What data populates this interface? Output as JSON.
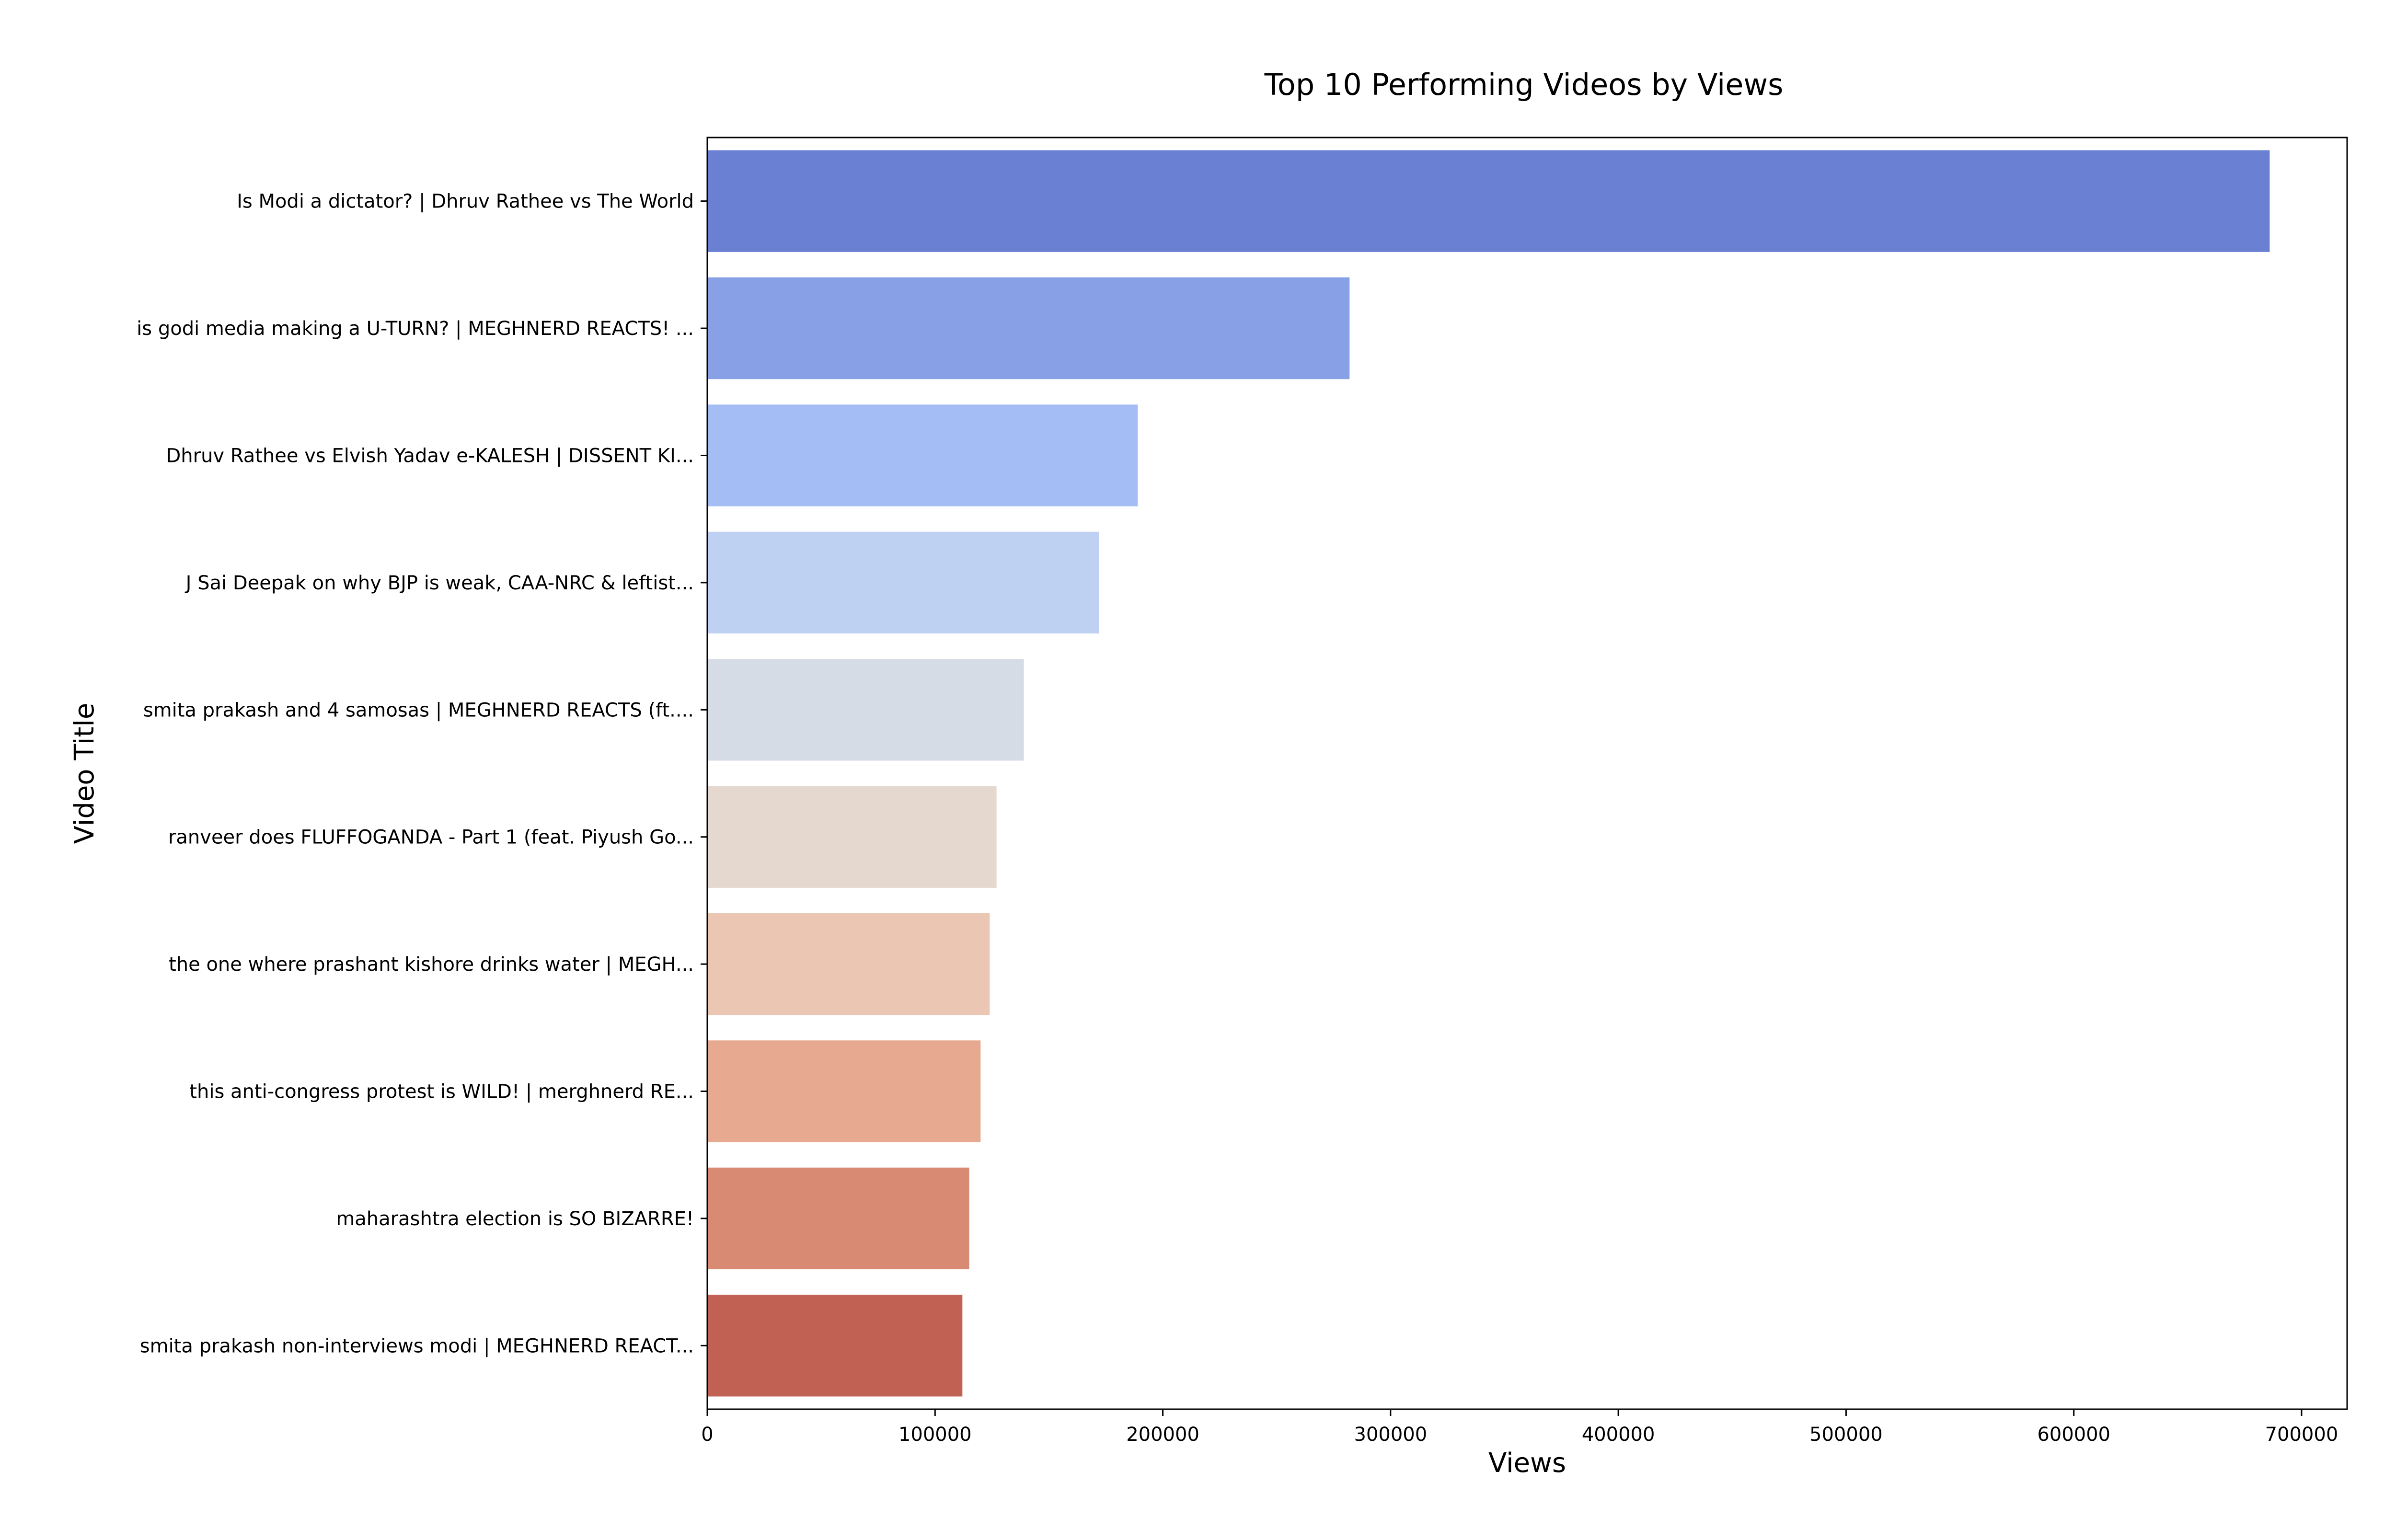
{
  "chart_data": {
    "type": "bar",
    "orientation": "horizontal",
    "title": "Top 10 Performing Videos by Views",
    "xlabel": "Views",
    "ylabel": "Video Title",
    "xlim": [
      0,
      720000
    ],
    "xticks": [
      0,
      100000,
      200000,
      300000,
      400000,
      500000,
      600000,
      700000
    ],
    "xtick_labels": [
      "0",
      "100000",
      "200000",
      "300000",
      "400000",
      "500000",
      "600000",
      "700000"
    ],
    "grid": false,
    "legend": "none",
    "categories": [
      "Is Modi a dictator? | Dhruv Rathee vs The World",
      "is godi media making a U-TURN? | MEGHNERD REACTS! ...",
      "Dhruv Rathee vs Elvish Yadav e-KALESH | DISSENT KI...",
      "J Sai Deepak on why BJP is weak, CAA-NRC & leftist...",
      "smita prakash and 4 samosas | MEGHNERD REACTS (ft....",
      "ranveer does FLUFFOGANDA - Part 1 (feat. Piyush Go...",
      "the one where prashant kishore drinks water | MEGH...",
      "this anti-congress protest is WILD! | merghnerd RE...",
      "maharashtra election is SO BIZARRE!",
      "smita prakash non-interviews modi | MEGHNERD REACT..."
    ],
    "values": [
      686000,
      282000,
      189000,
      172000,
      139000,
      127000,
      124000,
      120000,
      115000,
      112000
    ],
    "colors": [
      "#6a80d3",
      "#88a1e6",
      "#a4bdf4",
      "#bfd1f2",
      "#d6dce6",
      "#e5d8cf",
      "#ebc7b3",
      "#e7aa90",
      "#d98a73",
      "#c16154"
    ]
  }
}
